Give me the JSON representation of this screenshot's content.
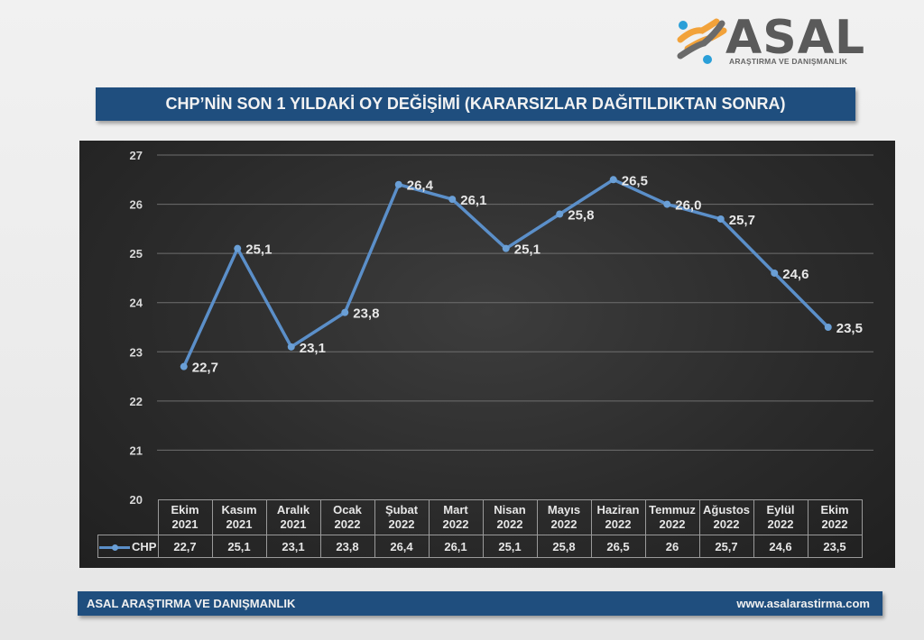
{
  "logo": {
    "name": "ASAL",
    "tagline": "ARAŞTIRMA VE DANIŞMANLIK"
  },
  "header": {
    "title": "CHP’NİN SON 1 YILDAKİ OY DEĞİŞİMİ  (KARARSIZLAR DAĞITILDIKTAN SONRA)"
  },
  "footer": {
    "left": "ASAL ARAŞTIRMA VE DANIŞMANLIK",
    "right": "www.asalarastirma.com"
  },
  "colors": {
    "title_bar": "#1f4e7e",
    "series_line": "#5b8fc9",
    "chart_bg": "#2a2a2a"
  },
  "table": {
    "legend_label": "CHP",
    "months": [
      {
        "m": "Ekim",
        "y": "2021"
      },
      {
        "m": "Kasım",
        "y": "2021"
      },
      {
        "m": "Aralık",
        "y": "2021"
      },
      {
        "m": "Ocak",
        "y": "2022"
      },
      {
        "m": "Şubat",
        "y": "2022"
      },
      {
        "m": "Mart",
        "y": "2022"
      },
      {
        "m": "Nisan",
        "y": "2022"
      },
      {
        "m": "Mayıs",
        "y": "2022"
      },
      {
        "m": "Haziran",
        "y": "2022"
      },
      {
        "m": "Temmuz",
        "y": "2022"
      },
      {
        "m": "Ağustos",
        "y": "2022"
      },
      {
        "m": "Eylül",
        "y": "2022"
      },
      {
        "m": "Ekim",
        "y": "2022"
      }
    ],
    "values": [
      "22,7",
      "25,1",
      "23,1",
      "23,8",
      "26,4",
      "26,1",
      "25,1",
      "25,8",
      "26,5",
      "26",
      "25,7",
      "24,6",
      "23,5"
    ]
  },
  "chart_data": {
    "type": "line",
    "title": "CHP’NİN SON 1 YILDAKİ OY DEĞİŞİMİ (KARARSIZLAR DAĞITILDIKTAN SONRA)",
    "xlabel": "",
    "ylabel": "",
    "categories": [
      "Ekim 2021",
      "Kasım 2021",
      "Aralık 2021",
      "Ocak 2022",
      "Şubat 2022",
      "Mart 2022",
      "Nisan 2022",
      "Mayıs 2022",
      "Haziran 2022",
      "Temmuz 2022",
      "Ağustos 2022",
      "Eylül 2022",
      "Ekim 2022"
    ],
    "series": [
      {
        "name": "CHP",
        "values": [
          22.7,
          25.1,
          23.1,
          23.8,
          26.4,
          26.1,
          25.1,
          25.8,
          26.5,
          26.0,
          25.7,
          24.6,
          23.5
        ]
      }
    ],
    "data_labels": [
      "22,7",
      "25,1",
      "23,1",
      "23,8",
      "26,4",
      "26,1",
      "25,1",
      "25,8",
      "26,5",
      "26,0",
      "25,7",
      "24,6",
      "23,5"
    ],
    "ylim": [
      20,
      27
    ],
    "yticks": [
      20,
      21,
      22,
      23,
      24,
      25,
      26,
      27
    ],
    "grid": true,
    "legend_position": "data-table"
  }
}
